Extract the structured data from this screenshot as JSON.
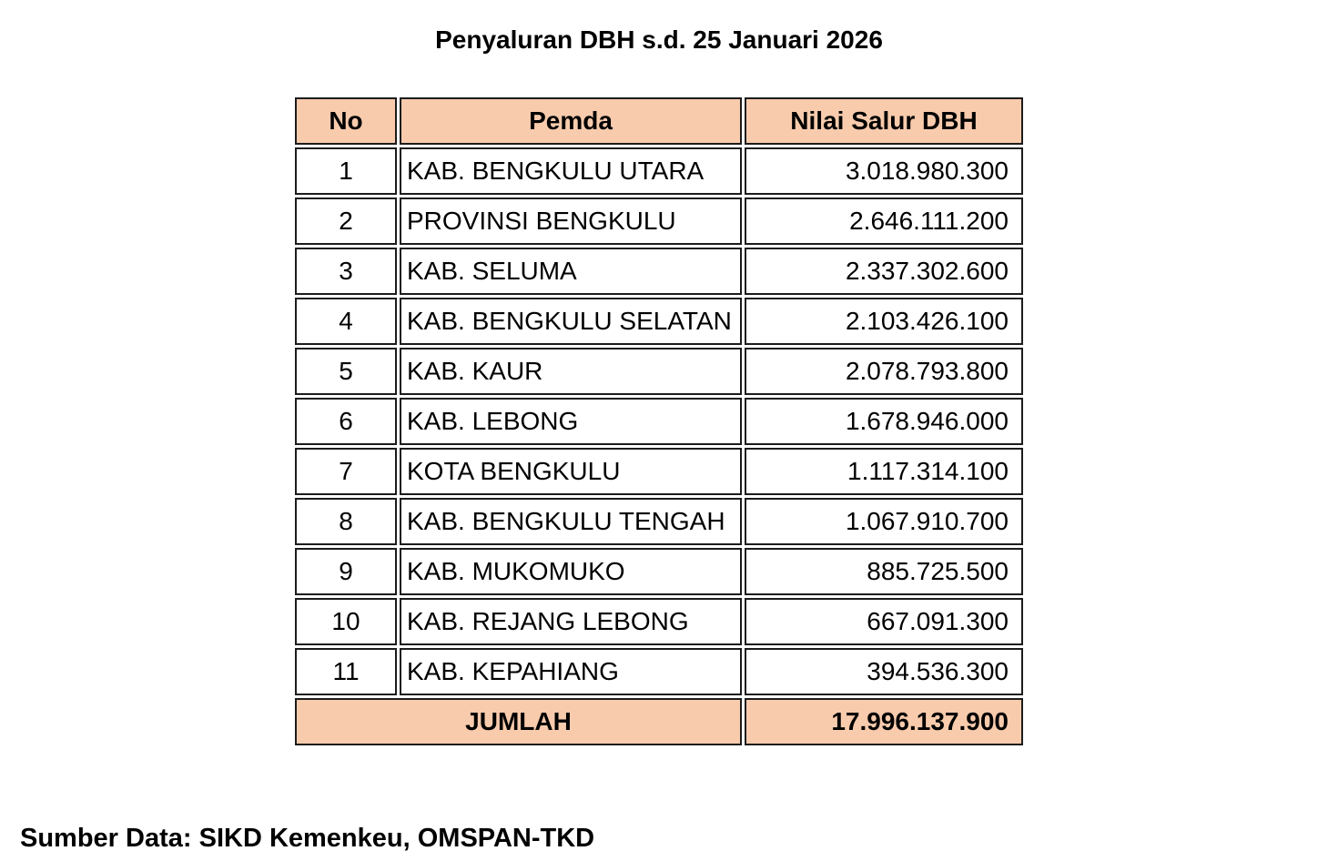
{
  "title": "Penyaluran DBH s.d. 25 Januari 2026",
  "colors": {
    "header_bg": "#F8CBAD",
    "border_color": "#1c1c1c",
    "text_color": "#000000",
    "page_bg": "#ffffff"
  },
  "table": {
    "headers": [
      "No",
      "Pemda",
      "Nilai Salur DBH"
    ],
    "rows": [
      {
        "no": "1",
        "pemda": "KAB. BENGKULU UTARA",
        "nilai": "3.018.980.300"
      },
      {
        "no": "2",
        "pemda": "PROVINSI BENGKULU",
        "nilai": "2.646.111.200"
      },
      {
        "no": "3",
        "pemda": "KAB. SELUMA",
        "nilai": "2.337.302.600"
      },
      {
        "no": "4",
        "pemda": "KAB. BENGKULU SELATAN",
        "nilai": "2.103.426.100"
      },
      {
        "no": "5",
        "pemda": "KAB. KAUR",
        "nilai": "2.078.793.800"
      },
      {
        "no": "6",
        "pemda": "KAB. LEBONG",
        "nilai": "1.678.946.000"
      },
      {
        "no": "7",
        "pemda": "KOTA BENGKULU",
        "nilai": "1.117.314.100"
      },
      {
        "no": "8",
        "pemda": "KAB. BENGKULU TENGAH",
        "nilai": "1.067.910.700"
      },
      {
        "no": "9",
        "pemda": "KAB. MUKOMUKO",
        "nilai": "885.725.500"
      },
      {
        "no": "10",
        "pemda": "KAB. REJANG LEBONG",
        "nilai": "667.091.300"
      },
      {
        "no": "11",
        "pemda": "KAB. KEPAHIANG",
        "nilai": "394.536.300"
      }
    ],
    "total_label": "JUMLAH",
    "total_value": "17.996.137.900"
  },
  "footer": {
    "source": "Sumber Data: SIKD Kemenkeu, OMSPAN-TKD"
  },
  "chart_data": {
    "type": "table",
    "title": "Penyaluran DBH s.d. 25 Januari 2026",
    "columns": [
      "No",
      "Pemda",
      "Nilai Salur DBH"
    ],
    "categories": [
      "KAB. BENGKULU UTARA",
      "PROVINSI BENGKULU",
      "KAB. SELUMA",
      "KAB. BENGKULU SELATAN",
      "KAB. KAUR",
      "KAB. LEBONG",
      "KOTA BENGKULU",
      "KAB. BENGKULU TENGAH",
      "KAB. MUKOMUKO",
      "KAB. REJANG LEBONG",
      "KAB. KEPAHIANG"
    ],
    "values": [
      3018980300,
      2646111200,
      2337302600,
      2103426100,
      2078793800,
      1678946000,
      1117314100,
      1067910700,
      885725500,
      667091300,
      394536300
    ],
    "total": 17996137900,
    "source": "SIKD Kemenkeu, OMSPAN-TKD"
  }
}
